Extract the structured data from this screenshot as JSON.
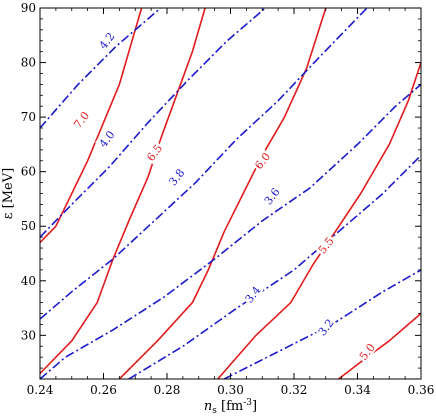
{
  "chart_data": {
    "type": "contour",
    "xlabel": "n_s [fm^-3]",
    "ylabel": "ε [MeV]",
    "xlim": [
      0.24,
      0.36
    ],
    "ylim": [
      22,
      90
    ],
    "x_ticks": [
      0.24,
      0.26,
      0.28,
      0.3,
      0.32,
      0.34,
      0.36
    ],
    "x_tick_labels": [
      "0.24",
      "0.26",
      "0.28",
      "0.30",
      "0.32",
      "0.34",
      "0.36"
    ],
    "y_ticks": [
      30,
      40,
      50,
      60,
      70,
      80,
      90
    ],
    "y_tick_labels": [
      "30",
      "40",
      "50",
      "60",
      "70",
      "80",
      "90"
    ],
    "grid": false,
    "series": [
      {
        "label": "7.0",
        "color": "#e41a1c",
        "style": "solid",
        "points": [
          [
            0.24,
            47
          ],
          [
            0.245,
            50
          ],
          [
            0.25,
            56
          ],
          [
            0.255,
            62
          ],
          [
            0.26,
            69
          ],
          [
            0.265,
            76
          ],
          [
            0.268,
            82
          ],
          [
            0.272,
            90
          ]
        ]
      },
      {
        "label": "6.5",
        "color": "#e41a1c",
        "style": "solid",
        "points": [
          [
            0.24,
            23
          ],
          [
            0.25,
            29
          ],
          [
            0.258,
            36
          ],
          [
            0.263,
            44
          ],
          [
            0.268,
            51
          ],
          [
            0.274,
            59
          ],
          [
            0.278,
            66
          ],
          [
            0.283,
            74
          ],
          [
            0.288,
            82
          ],
          [
            0.292,
            90
          ]
        ]
      },
      {
        "label": "6.0",
        "color": "#e41a1c",
        "style": "solid",
        "points": [
          [
            0.265,
            22
          ],
          [
            0.277,
            29
          ],
          [
            0.288,
            36
          ],
          [
            0.293,
            42
          ],
          [
            0.298,
            49
          ],
          [
            0.304,
            56
          ],
          [
            0.31,
            63
          ],
          [
            0.317,
            70
          ],
          [
            0.324,
            79
          ],
          [
            0.33,
            90
          ]
        ]
      },
      {
        "label": "5.5",
        "color": "#e41a1c",
        "style": "solid",
        "points": [
          [
            0.296,
            22
          ],
          [
            0.308,
            30
          ],
          [
            0.319,
            36
          ],
          [
            0.326,
            43
          ],
          [
            0.333,
            49
          ],
          [
            0.341,
            56
          ],
          [
            0.35,
            65
          ],
          [
            0.356,
            73
          ],
          [
            0.36,
            80
          ]
        ]
      },
      {
        "label": "5.0",
        "color": "#e41a1c",
        "style": "solid",
        "points": [
          [
            0.334,
            22
          ],
          [
            0.343,
            26
          ],
          [
            0.35,
            29
          ],
          [
            0.356,
            32
          ],
          [
            0.36,
            34
          ]
        ]
      },
      {
        "label": "4.2",
        "color": "#1a1acc",
        "style": "dashdot",
        "points": [
          [
            0.24,
            68
          ],
          [
            0.252,
            76
          ],
          [
            0.264,
            83
          ],
          [
            0.278,
            90
          ]
        ]
      },
      {
        "label": "4.0",
        "color": "#1a1acc",
        "style": "dashdot",
        "points": [
          [
            0.24,
            48
          ],
          [
            0.25,
            54
          ],
          [
            0.262,
            61
          ],
          [
            0.274,
            69
          ],
          [
            0.287,
            77
          ],
          [
            0.299,
            84
          ],
          [
            0.311,
            90
          ]
        ]
      },
      {
        "label": "3.8",
        "color": "#1a1acc",
        "style": "dashdot",
        "points": [
          [
            0.24,
            33
          ],
          [
            0.25,
            38
          ],
          [
            0.263,
            44
          ],
          [
            0.276,
            51
          ],
          [
            0.289,
            58
          ],
          [
            0.302,
            66
          ],
          [
            0.315,
            73
          ],
          [
            0.328,
            81
          ],
          [
            0.343,
            90
          ]
        ]
      },
      {
        "label": "3.6",
        "color": "#1a1acc",
        "style": "dashdot",
        "points": [
          [
            0.24,
            22
          ],
          [
            0.248,
            26
          ],
          [
            0.263,
            31
          ],
          [
            0.279,
            37
          ],
          [
            0.295,
            44
          ],
          [
            0.31,
            51
          ],
          [
            0.325,
            57
          ],
          [
            0.34,
            65
          ],
          [
            0.352,
            72
          ],
          [
            0.36,
            76
          ]
        ]
      },
      {
        "label": "3.4",
        "color": "#1a1acc",
        "style": "dashdot",
        "points": [
          [
            0.268,
            22
          ],
          [
            0.285,
            28
          ],
          [
            0.302,
            35
          ],
          [
            0.32,
            42
          ],
          [
            0.338,
            51
          ],
          [
            0.348,
            56
          ],
          [
            0.36,
            63
          ]
        ]
      },
      {
        "label": "3.2",
        "color": "#1a1acc",
        "style": "dashdot",
        "points": [
          [
            0.298,
            22
          ],
          [
            0.315,
            27
          ],
          [
            0.332,
            32
          ],
          [
            0.348,
            38
          ],
          [
            0.36,
            42
          ]
        ]
      }
    ],
    "contour_labels": [
      {
        "text": "7.0",
        "x": 0.253,
        "y": 69.5,
        "color": "#e41a1c"
      },
      {
        "text": "6.5",
        "x": 0.276,
        "y": 63.5,
        "color": "#e41a1c"
      },
      {
        "text": "6.0",
        "x": 0.31,
        "y": 62.0,
        "color": "#e41a1c"
      },
      {
        "text": "5.5",
        "x": 0.33,
        "y": 46.5,
        "color": "#e41a1c"
      },
      {
        "text": "5.0",
        "x": 0.343,
        "y": 27.0,
        "color": "#e41a1c"
      },
      {
        "text": "4.2",
        "x": 0.261,
        "y": 84.0,
        "color": "#1a1acc"
      },
      {
        "text": "4.0",
        "x": 0.261,
        "y": 66.0,
        "color": "#1a1acc"
      },
      {
        "text": "3.8",
        "x": 0.283,
        "y": 59.0,
        "color": "#1a1acc"
      },
      {
        "text": "3.6",
        "x": 0.313,
        "y": 55.5,
        "color": "#1a1acc"
      },
      {
        "text": "3.4",
        "x": 0.307,
        "y": 37.5,
        "color": "#1a1acc"
      },
      {
        "text": "3.2",
        "x": 0.33,
        "y": 31.5,
        "color": "#1a1acc"
      }
    ]
  }
}
